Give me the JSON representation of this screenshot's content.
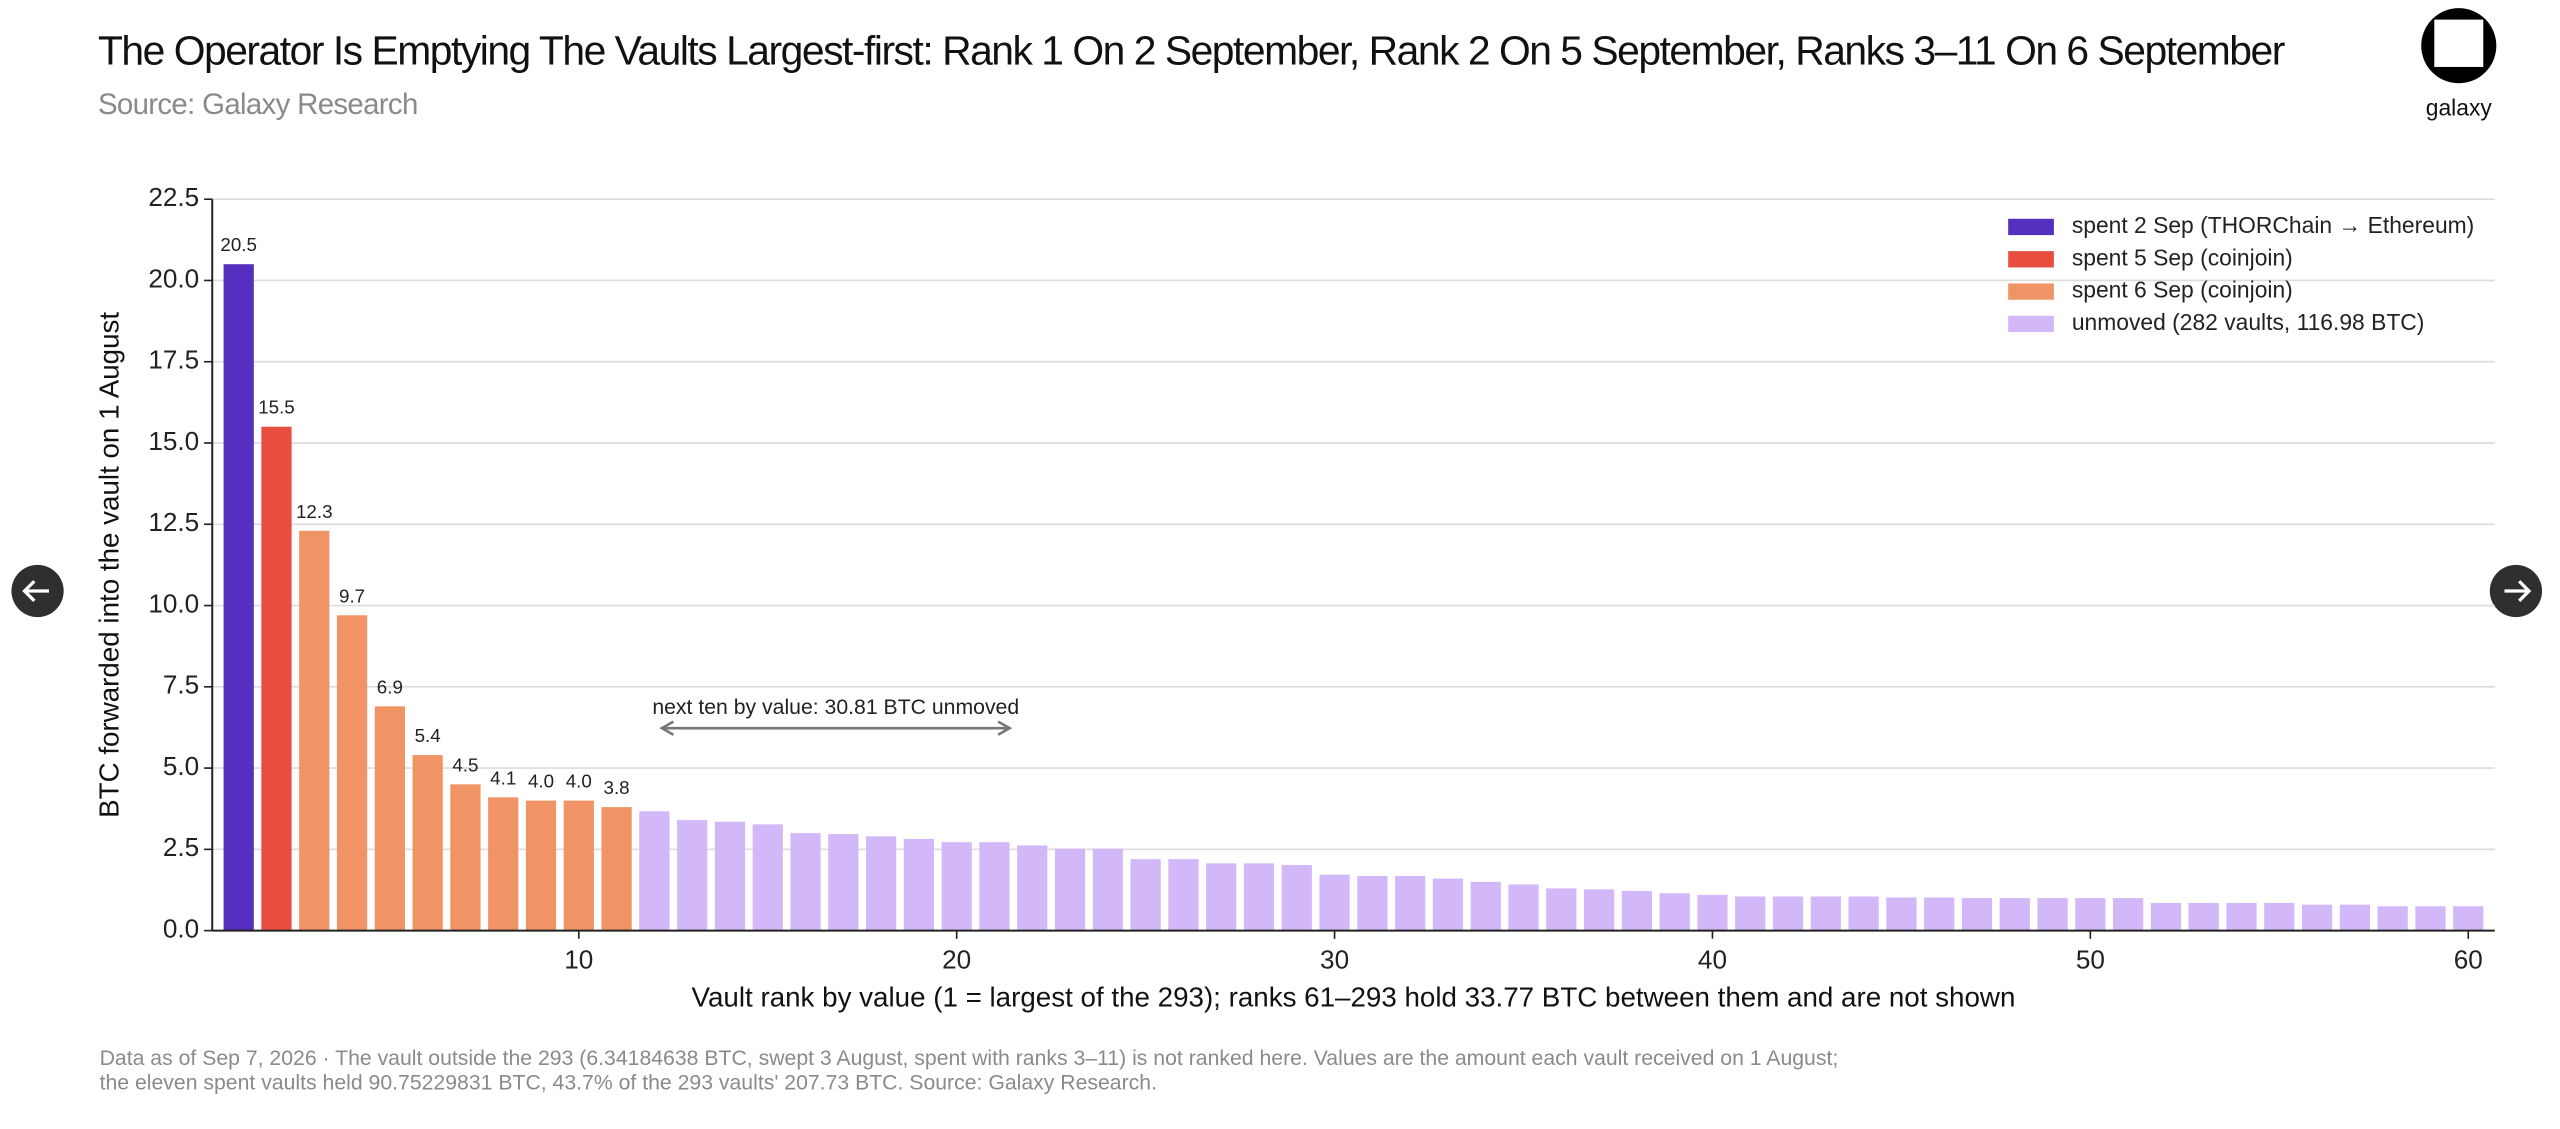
{
  "chart_data": {
    "type": "bar",
    "title": "The Operator Is Emptying The Vaults Largest-first: Rank 1 On 2 September, Rank 2 On 5 September, Ranks 3–11 On 6 September",
    "subtitle": "Source: Galaxy Research",
    "brand": "galaxy",
    "x_label": "Vault rank by value (1 = largest of the 293); ranks 61–293 hold 33.77 BTC between them and are not shown",
    "y_label": "BTC forwarded into the vault on 1 August",
    "annotation": "next ten by value: 30.81 BTC unmoved",
    "footnote": [
      "Data as of Sep 7, 2026 · The vault outside the 293 (6.34184638 BTC, swept 3 August, spent with ranks 3–11) is not ranked here. Values are the amount each vault received on 1 August;",
      "the eleven spent vaults held 90.75229831 BTC, 43.7% of the 293 vaults' 207.73 BTC. Source: Galaxy Research."
    ],
    "xlim": [
      0.3,
      60.7
    ],
    "xticks": [
      10,
      20,
      30,
      40,
      50,
      60
    ],
    "ylim": [
      0,
      22.5
    ],
    "yticks": [
      {
        "value": 0,
        "label": "0.0"
      },
      {
        "value": 2.5,
        "label": "2.5"
      },
      {
        "value": 5,
        "label": "5.0"
      },
      {
        "value": 7.5,
        "label": "7.5"
      },
      {
        "value": 10,
        "label": "10.0"
      },
      {
        "value": 12.5,
        "label": "12.5"
      },
      {
        "value": 15,
        "label": "15.0"
      },
      {
        "value": 17.5,
        "label": "17.5"
      },
      {
        "value": 20,
        "label": "20.0"
      },
      {
        "value": 22.5,
        "label": "22.5"
      }
    ],
    "grid": true,
    "legend": "upper right",
    "series": [
      {
        "name": "spent 2 Sep (THORChain → Ethereum)",
        "color": "#5530c0",
        "x": [
          1
        ],
        "values": [
          20.5
        ],
        "value_labels": [
          "20.5"
        ]
      },
      {
        "name": "spent 5 Sep (coinjoin)",
        "color": "#e84e40",
        "x": [
          2
        ],
        "values": [
          15.5
        ],
        "value_labels": [
          "15.5"
        ]
      },
      {
        "name": "spent 6 Sep (coinjoin)",
        "color": "#f09466",
        "x": [
          3,
          4,
          5,
          6,
          7,
          8,
          9,
          10,
          11
        ],
        "values": [
          12.3,
          9.7,
          6.9,
          5.4,
          4.5,
          4.1,
          4.0,
          4.0,
          3.8
        ],
        "value_labels": [
          "12.3",
          "9.7",
          "6.9",
          "5.4",
          "4.5",
          "4.1",
          "4.0",
          "4.0",
          "3.8"
        ]
      },
      {
        "name": "unmoved (282 vaults, 116.98 BTC)",
        "color": "#d2b8f8",
        "x": [
          12,
          13,
          14,
          15,
          16,
          17,
          18,
          19,
          20,
          21,
          22,
          23,
          24,
          25,
          26,
          27,
          28,
          29,
          30,
          31,
          32,
          33,
          34,
          35,
          36,
          37,
          38,
          39,
          40,
          41,
          42,
          43,
          44,
          45,
          46,
          47,
          48,
          49,
          50,
          51,
          52,
          53,
          54,
          55,
          56,
          57,
          58,
          59,
          60
        ],
        "values": [
          3.67,
          3.4,
          3.35,
          3.27,
          3.0,
          2.97,
          2.9,
          2.82,
          2.72,
          2.72,
          2.62,
          2.52,
          2.52,
          2.2,
          2.2,
          2.07,
          2.07,
          2.02,
          1.72,
          1.68,
          1.68,
          1.6,
          1.5,
          1.42,
          1.3,
          1.27,
          1.22,
          1.15,
          1.1,
          1.05,
          1.05,
          1.05,
          1.05,
          1.02,
          1.02,
          1.0,
          1.0,
          1.0,
          1.0,
          1.0,
          0.85,
          0.85,
          0.85,
          0.85,
          0.8,
          0.8,
          0.75,
          0.75,
          0.75
        ]
      }
    ]
  }
}
